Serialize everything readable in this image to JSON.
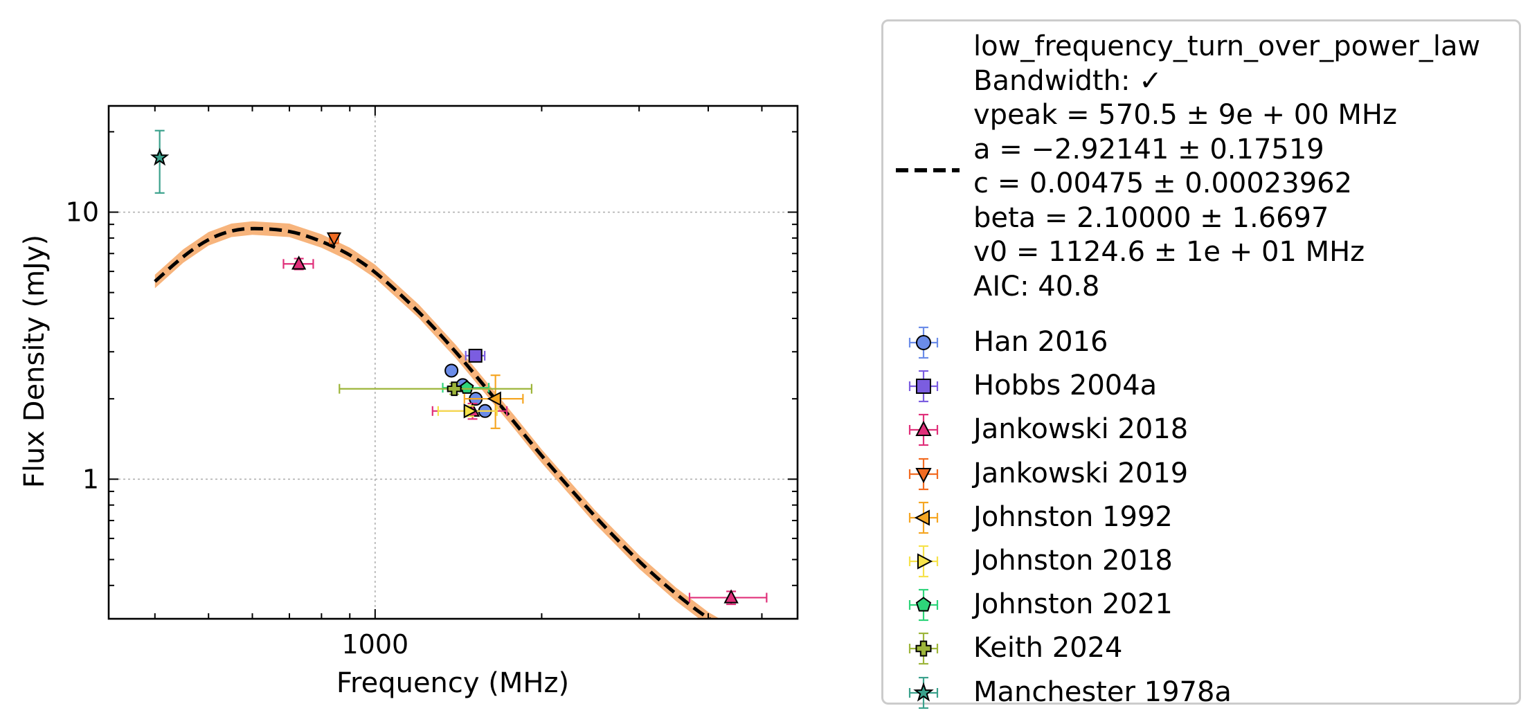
{
  "chart_data": {
    "type": "scatter",
    "xlabel": "Frequency (MHz)",
    "ylabel": "Flux Density (mJy)",
    "xscale": "log",
    "yscale": "log",
    "xlim": [
      330,
      5800
    ],
    "ylim": [
      0.3,
      25
    ],
    "x_ticks": [
      {
        "value": 1000,
        "label": "1000"
      }
    ],
    "y_ticks": [
      {
        "value": 1,
        "label": "1"
      },
      {
        "value": 10,
        "label": "10"
      }
    ],
    "grid": true,
    "legend_position": "outside-right",
    "fit": {
      "name": "low_frequency_turn_over_power_law",
      "text_lines": [
        "low_frequency_turn_over_power_law",
        "Bandwidth: ✓",
        "vpeak = 570.5 ± 9e + 00 MHz",
        "a = −2.92141 ± 0.17519",
        "c = 0.00475 ± 0.00023962",
        "beta = 2.10000 ± 1.6697",
        "v0 = 1124.6 ± 1e + 01 MHz",
        "AIC: 40.8"
      ],
      "curve_x": [
        400,
        450,
        500,
        550,
        600,
        700,
        800,
        900,
        1000,
        1200,
        1400,
        1600,
        1800,
        2000,
        2500,
        3000,
        3500,
        4000,
        4500,
        5000
      ],
      "curve_y": [
        5.5,
        6.85,
        7.95,
        8.55,
        8.72,
        8.55,
        7.8,
        6.95,
        6.0,
        4.25,
        3.0,
        2.15,
        1.6,
        1.22,
        0.72,
        0.49,
        0.37,
        0.3,
        0.26,
        0.23
      ],
      "line_color": "#000000",
      "band_color": "#f7b47c"
    },
    "series": [
      {
        "name": "Han 2016",
        "marker": "circle",
        "color": "#6b8ce8",
        "edge": "#000000",
        "points": [
          {
            "x": 1374,
            "y": 2.55,
            "xerr": 12,
            "yerr": 0.05
          },
          {
            "x": 1440,
            "y": 2.25,
            "xerr": 10,
            "yerr": 0.05
          },
          {
            "x": 1520,
            "y": 2.0,
            "xerr": 10,
            "yerr": 0.05
          },
          {
            "x": 1580,
            "y": 1.8,
            "xerr": 10,
            "yerr": 0.05
          }
        ]
      },
      {
        "name": "Hobbs 2004a",
        "marker": "square",
        "color": "#7b5de0",
        "edge": "#000000",
        "points": [
          {
            "x": 1518,
            "y": 2.9,
            "xerr": 60,
            "yerr": 0.08
          }
        ]
      },
      {
        "name": "Jankowski 2018",
        "marker": "triangle-up",
        "color": "#e0307a",
        "edge": "#000000",
        "points": [
          {
            "x": 728,
            "y": 6.4,
            "xerr": 45,
            "yerr": 0.3
          },
          {
            "x": 1500,
            "y": 1.8,
            "xerr": 230,
            "yerr": 0.12
          },
          {
            "x": 4400,
            "y": 0.36,
            "xerr": 700,
            "yerr": 0.02
          }
        ]
      },
      {
        "name": "Jankowski 2019",
        "marker": "triangle-down",
        "color": "#f26b21",
        "edge": "#000000",
        "points": [
          {
            "x": 843,
            "y": 8.0,
            "xerr": 15,
            "yerr": 0.35
          }
        ]
      },
      {
        "name": "Johnston 1992",
        "marker": "triangle-left",
        "color": "#f5a623",
        "edge": "#000000",
        "points": [
          {
            "x": 1650,
            "y": 2.0,
            "xerr": 200,
            "yerr": 0.45
          }
        ]
      },
      {
        "name": "Johnston 2018",
        "marker": "triangle-right",
        "color": "#f6e24a",
        "edge": "#000000",
        "points": [
          {
            "x": 1480,
            "y": 1.8,
            "xerr": 180,
            "yerr": 0.08
          }
        ]
      },
      {
        "name": "Johnston 2021",
        "marker": "pentagon",
        "color": "#2ed47a",
        "edge": "#000000",
        "points": [
          {
            "x": 1465,
            "y": 2.2,
            "xerr": 140,
            "yerr": 0.06
          }
        ]
      },
      {
        "name": "Keith 2024",
        "marker": "plus",
        "color": "#9db53a",
        "edge": "#000000",
        "points": [
          {
            "x": 1390,
            "y": 2.18,
            "xerr": 528,
            "yerr": 0.1
          }
        ]
      },
      {
        "name": "Manchester 1978a",
        "marker": "star",
        "color": "#3aa18c",
        "edge": "#000000",
        "points": [
          {
            "x": 408,
            "y": 16.0,
            "xerr": 3,
            "yerr": 4.2
          }
        ]
      }
    ]
  }
}
